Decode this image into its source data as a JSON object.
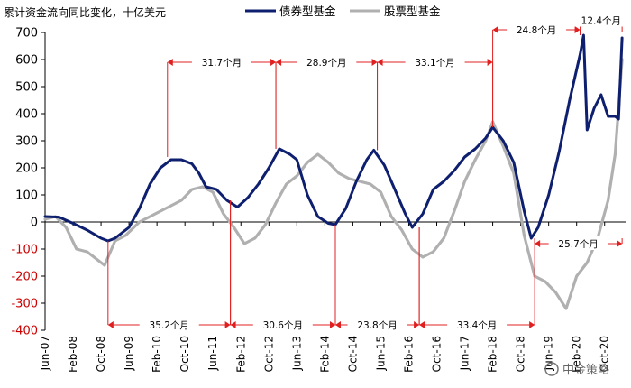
{
  "chart_data": {
    "type": "line",
    "title": "累计资金流向同比变化，十亿美元",
    "ylim": [
      -400,
      700
    ],
    "yticks": [
      700,
      600,
      500,
      400,
      300,
      200,
      100,
      0,
      -100,
      -200,
      -300,
      -400
    ],
    "xlim": [
      "2007-06",
      "2021-04"
    ],
    "xticks": [
      "Jun-07",
      "Feb-08",
      "Oct-08",
      "Jun-09",
      "Feb-10",
      "Oct-10",
      "Jun-11",
      "Feb-12",
      "Oct-12",
      "Jun-13",
      "Feb-14",
      "Oct-14",
      "Jun-15",
      "Feb-16",
      "Oct-16",
      "Jun-17",
      "Feb-18",
      "Oct-18",
      "Jun-19",
      "Feb-20",
      "Oct-20"
    ],
    "grid": false,
    "legend_position": "top",
    "series": [
      {
        "name": "债券型基金",
        "color": "#0d1f6e",
        "points": [
          [
            "2007-06",
            20
          ],
          [
            "2007-10",
            18
          ],
          [
            "2008-02",
            -5
          ],
          [
            "2008-06",
            -30
          ],
          [
            "2008-10",
            -60
          ],
          [
            "2008-12",
            -70
          ],
          [
            "2009-02",
            -60
          ],
          [
            "2009-06",
            -20
          ],
          [
            "2009-09",
            50
          ],
          [
            "2009-12",
            140
          ],
          [
            "2010-03",
            200
          ],
          [
            "2010-06",
            230
          ],
          [
            "2010-09",
            230
          ],
          [
            "2010-12",
            215
          ],
          [
            "2011-02",
            180
          ],
          [
            "2011-04",
            130
          ],
          [
            "2011-07",
            120
          ],
          [
            "2011-10",
            80
          ],
          [
            "2012-01",
            55
          ],
          [
            "2012-04",
            90
          ],
          [
            "2012-07",
            140
          ],
          [
            "2012-10",
            200
          ],
          [
            "2013-01",
            270
          ],
          [
            "2013-04",
            250
          ],
          [
            "2013-06",
            230
          ],
          [
            "2013-09",
            100
          ],
          [
            "2013-12",
            20
          ],
          [
            "2014-03",
            -5
          ],
          [
            "2014-05",
            -10
          ],
          [
            "2014-08",
            50
          ],
          [
            "2014-11",
            150
          ],
          [
            "2015-02",
            230
          ],
          [
            "2015-04",
            265
          ],
          [
            "2015-07",
            210
          ],
          [
            "2015-10",
            120
          ],
          [
            "2016-01",
            30
          ],
          [
            "2016-03",
            -20
          ],
          [
            "2016-06",
            30
          ],
          [
            "2016-09",
            120
          ],
          [
            "2016-12",
            150
          ],
          [
            "2017-03",
            190
          ],
          [
            "2017-06",
            240
          ],
          [
            "2017-09",
            270
          ],
          [
            "2017-12",
            310
          ],
          [
            "2018-02",
            350
          ],
          [
            "2018-05",
            300
          ],
          [
            "2018-08",
            220
          ],
          [
            "2018-11",
            40
          ],
          [
            "2019-01",
            -60
          ],
          [
            "2019-03",
            -20
          ],
          [
            "2019-06",
            100
          ],
          [
            "2019-09",
            260
          ],
          [
            "2019-12",
            450
          ],
          [
            "2020-03",
            620
          ],
          [
            "2020-04",
            690
          ],
          [
            "2020-05",
            340
          ],
          [
            "2020-07",
            420
          ],
          [
            "2020-09",
            470
          ],
          [
            "2020-11",
            390
          ],
          [
            "2021-01",
            390
          ],
          [
            "2021-02",
            380
          ],
          [
            "2021-03",
            680
          ]
        ]
      },
      {
        "name": "股票型基金",
        "color": "#b0b0b0",
        "points": [
          [
            "2007-06",
            10
          ],
          [
            "2007-09",
            20
          ],
          [
            "2007-12",
            -20
          ],
          [
            "2008-03",
            -100
          ],
          [
            "2008-06",
            -110
          ],
          [
            "2008-09",
            -140
          ],
          [
            "2008-11",
            -160
          ],
          [
            "2009-02",
            -70
          ],
          [
            "2009-05",
            -50
          ],
          [
            "2009-09",
            0
          ],
          [
            "2009-12",
            20
          ],
          [
            "2010-03",
            40
          ],
          [
            "2010-06",
            60
          ],
          [
            "2010-09",
            80
          ],
          [
            "2010-12",
            120
          ],
          [
            "2011-03",
            130
          ],
          [
            "2011-06",
            110
          ],
          [
            "2011-09",
            30
          ],
          [
            "2011-12",
            -20
          ],
          [
            "2012-03",
            -80
          ],
          [
            "2012-06",
            -60
          ],
          [
            "2012-09",
            -10
          ],
          [
            "2012-12",
            70
          ],
          [
            "2013-03",
            140
          ],
          [
            "2013-06",
            170
          ],
          [
            "2013-09",
            220
          ],
          [
            "2013-12",
            250
          ],
          [
            "2014-03",
            220
          ],
          [
            "2014-06",
            180
          ],
          [
            "2014-09",
            160
          ],
          [
            "2014-12",
            150
          ],
          [
            "2015-03",
            140
          ],
          [
            "2015-06",
            110
          ],
          [
            "2015-09",
            20
          ],
          [
            "2015-12",
            -30
          ],
          [
            "2016-03",
            -100
          ],
          [
            "2016-06",
            -130
          ],
          [
            "2016-09",
            -110
          ],
          [
            "2016-12",
            -60
          ],
          [
            "2017-03",
            40
          ],
          [
            "2017-06",
            150
          ],
          [
            "2017-09",
            230
          ],
          [
            "2017-12",
            300
          ],
          [
            "2018-02",
            370
          ],
          [
            "2018-05",
            280
          ],
          [
            "2018-08",
            180
          ],
          [
            "2018-11",
            -50
          ],
          [
            "2019-02",
            -200
          ],
          [
            "2019-05",
            -220
          ],
          [
            "2019-08",
            -260
          ],
          [
            "2019-11",
            -320
          ],
          [
            "2020-02",
            -200
          ],
          [
            "2020-05",
            -150
          ],
          [
            "2020-08",
            -60
          ],
          [
            "2020-11",
            80
          ],
          [
            "2021-01",
            250
          ],
          [
            "2021-03",
            600
          ]
        ]
      }
    ],
    "annotations": [
      {
        "label": "31.7个月",
        "from": "2010-05",
        "to": "2012-12",
        "level": 590,
        "drop_start": 240,
        "drop_end": 270
      },
      {
        "label": "28.9个月",
        "from": "2012-12",
        "to": "2015-05",
        "level": 590,
        "drop_start": 270,
        "drop_end": 265
      },
      {
        "label": "33.1个月",
        "from": "2015-05",
        "to": "2018-02",
        "level": 590,
        "drop_start": 265,
        "drop_end": 350
      },
      {
        "label": "24.8个月",
        "from": "2018-02",
        "to": "2020-03",
        "level": 710,
        "drop_start": 350,
        "drop_end": 690
      },
      {
        "label": "12.4个月",
        "from": "2020-03",
        "to": "2021-03",
        "level": 745,
        "drop_start": 690,
        "drop_end": 700
      },
      {
        "label": "35.2个月",
        "from": "2008-12",
        "to": "2011-11",
        "level": -380,
        "drop_start": -70,
        "drop_end": 80
      },
      {
        "label": "30.6个月",
        "from": "2011-11",
        "to": "2014-05",
        "level": -380,
        "drop_start": 80,
        "drop_end": -10
      },
      {
        "label": "23.8个月",
        "from": "2014-05",
        "to": "2016-05",
        "level": -380,
        "drop_start": -10,
        "drop_end": -20
      },
      {
        "label": "33.4个月",
        "from": "2016-05",
        "to": "2019-02",
        "level": -380,
        "drop_start": -20,
        "drop_end": -60
      },
      {
        "label": "25.7个月",
        "from": "2019-02",
        "to": "2021-03",
        "level": -80,
        "drop_start": -60,
        "drop_end": -60
      }
    ]
  },
  "watermark": "中金策略"
}
